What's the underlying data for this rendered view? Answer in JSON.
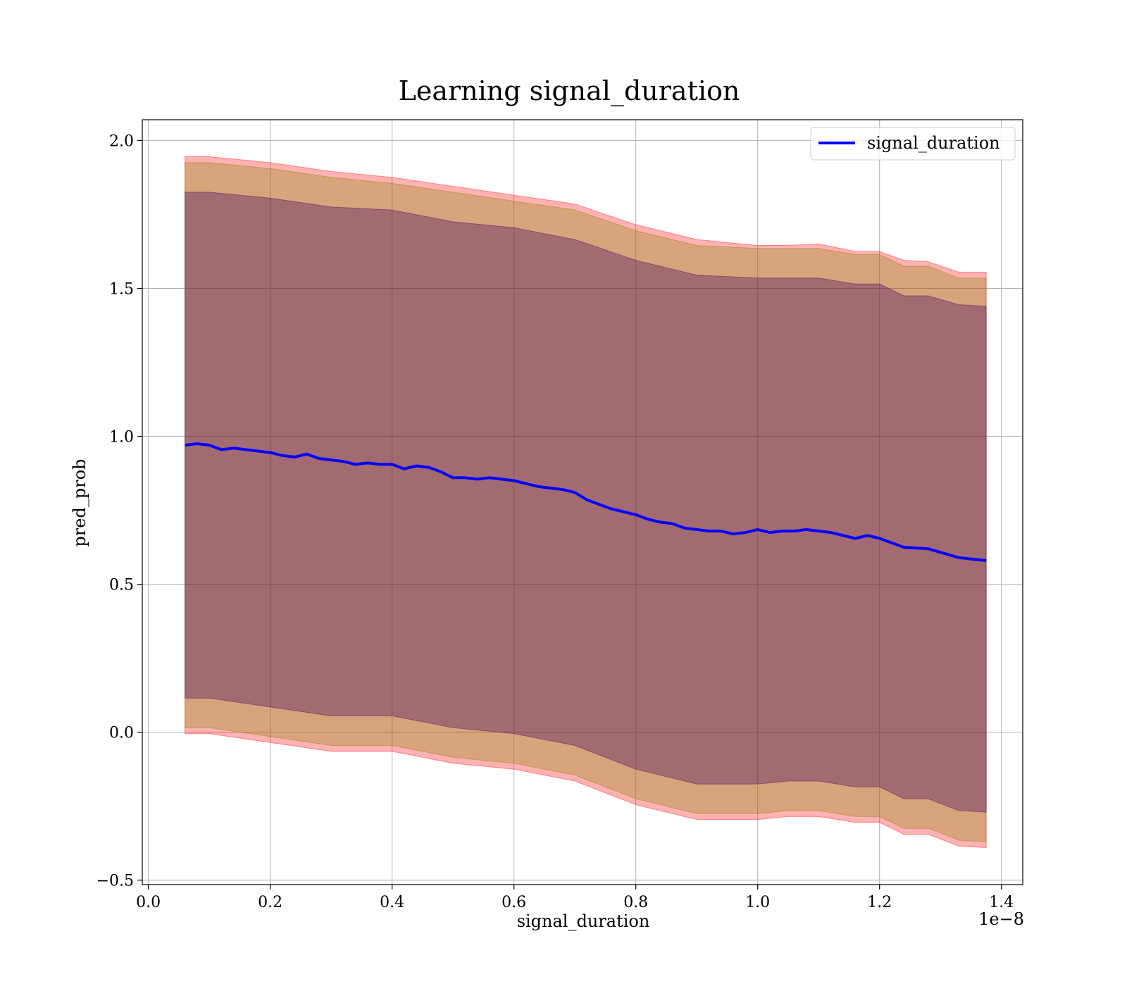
{
  "chart_data": {
    "type": "line",
    "title": "Learning signal_duration",
    "xlabel": "signal_duration",
    "ylabel": "pred_prob",
    "x_offset_label": "1e−8",
    "x_tick_labels": [
      "0.0",
      "0.2",
      "0.4",
      "0.6",
      "0.8",
      "1.0",
      "1.2",
      "1.4"
    ],
    "y_tick_labels": [
      "−0.5",
      "0.0",
      "0.5",
      "1.0",
      "1.5",
      "2.0"
    ],
    "x_ticks": [
      0.0,
      0.2,
      0.4,
      0.6,
      0.8,
      1.0,
      1.2,
      1.4
    ],
    "y_ticks": [
      -0.5,
      0.0,
      0.5,
      1.0,
      1.5,
      2.0
    ],
    "xlim": [
      -0.01,
      1.435
    ],
    "ylim": [
      -0.515,
      2.07
    ],
    "x_scale_note": "x values in units of 1e-8",
    "grid": true,
    "legend_position": "top-right",
    "series": [
      {
        "name": "signal_duration",
        "color": "#0000ff",
        "x": [
          0.06,
          0.08,
          0.1,
          0.12,
          0.14,
          0.16,
          0.18,
          0.2,
          0.22,
          0.24,
          0.26,
          0.28,
          0.3,
          0.32,
          0.34,
          0.36,
          0.38,
          0.4,
          0.42,
          0.44,
          0.46,
          0.48,
          0.5,
          0.52,
          0.54,
          0.56,
          0.58,
          0.6,
          0.62,
          0.64,
          0.66,
          0.68,
          0.7,
          0.72,
          0.74,
          0.76,
          0.78,
          0.8,
          0.82,
          0.84,
          0.86,
          0.88,
          0.9,
          0.92,
          0.94,
          0.96,
          0.98,
          1.0,
          1.02,
          1.04,
          1.06,
          1.08,
          1.1,
          1.12,
          1.16,
          1.18,
          1.2,
          1.24,
          1.28,
          1.33,
          1.375
        ],
        "y": [
          0.97,
          0.975,
          0.97,
          0.955,
          0.96,
          0.955,
          0.95,
          0.945,
          0.935,
          0.93,
          0.94,
          0.925,
          0.92,
          0.915,
          0.905,
          0.91,
          0.905,
          0.905,
          0.89,
          0.9,
          0.895,
          0.88,
          0.86,
          0.86,
          0.855,
          0.86,
          0.855,
          0.85,
          0.84,
          0.83,
          0.825,
          0.82,
          0.81,
          0.785,
          0.77,
          0.755,
          0.745,
          0.735,
          0.72,
          0.71,
          0.705,
          0.69,
          0.685,
          0.68,
          0.68,
          0.67,
          0.675,
          0.685,
          0.675,
          0.68,
          0.68,
          0.685,
          0.68,
          0.675,
          0.655,
          0.665,
          0.655,
          0.625,
          0.62,
          0.59,
          0.58
        ]
      }
    ],
    "bands": [
      {
        "color": "#ff0000",
        "opacity": 0.3,
        "x": [
          0.06,
          0.1,
          0.2,
          0.3,
          0.4,
          0.5,
          0.6,
          0.7,
          0.8,
          0.9,
          1.0,
          1.05,
          1.1,
          1.16,
          1.2,
          1.24,
          1.28,
          1.33,
          1.375
        ],
        "upper": [
          1.945,
          1.945,
          1.925,
          1.895,
          1.875,
          1.845,
          1.815,
          1.785,
          1.715,
          1.665,
          1.645,
          1.645,
          1.65,
          1.625,
          1.625,
          1.595,
          1.59,
          1.555,
          1.555
        ],
        "lower": [
          -0.005,
          -0.005,
          -0.035,
          -0.065,
          -0.065,
          -0.105,
          -0.125,
          -0.165,
          -0.245,
          -0.295,
          -0.295,
          -0.285,
          -0.285,
          -0.305,
          -0.305,
          -0.345,
          -0.345,
          -0.385,
          -0.39
        ]
      },
      {
        "color": "#808000",
        "opacity": 0.3,
        "x": [
          0.06,
          0.1,
          0.2,
          0.3,
          0.4,
          0.5,
          0.6,
          0.7,
          0.8,
          0.9,
          1.0,
          1.05,
          1.1,
          1.16,
          1.2,
          1.24,
          1.28,
          1.33,
          1.375
        ],
        "upper": [
          1.925,
          1.925,
          1.905,
          1.875,
          1.855,
          1.825,
          1.795,
          1.765,
          1.695,
          1.645,
          1.635,
          1.635,
          1.635,
          1.615,
          1.615,
          1.575,
          1.575,
          1.535,
          1.535
        ],
        "lower": [
          0.015,
          0.015,
          -0.015,
          -0.045,
          -0.045,
          -0.085,
          -0.105,
          -0.145,
          -0.225,
          -0.275,
          -0.275,
          -0.265,
          -0.265,
          -0.285,
          -0.285,
          -0.325,
          -0.325,
          -0.365,
          -0.37
        ]
      },
      {
        "color": "#400060",
        "opacity": 0.35,
        "x": [
          0.06,
          0.1,
          0.2,
          0.3,
          0.4,
          0.5,
          0.6,
          0.7,
          0.8,
          0.9,
          1.0,
          1.05,
          1.1,
          1.16,
          1.2,
          1.24,
          1.28,
          1.33,
          1.375
        ],
        "upper": [
          1.825,
          1.825,
          1.805,
          1.775,
          1.765,
          1.725,
          1.705,
          1.665,
          1.595,
          1.545,
          1.535,
          1.535,
          1.535,
          1.515,
          1.515,
          1.475,
          1.475,
          1.445,
          1.44
        ],
        "lower": [
          0.115,
          0.115,
          0.085,
          0.055,
          0.055,
          0.015,
          -0.005,
          -0.045,
          -0.125,
          -0.175,
          -0.175,
          -0.165,
          -0.165,
          -0.185,
          -0.185,
          -0.225,
          -0.225,
          -0.265,
          -0.27
        ]
      }
    ]
  }
}
